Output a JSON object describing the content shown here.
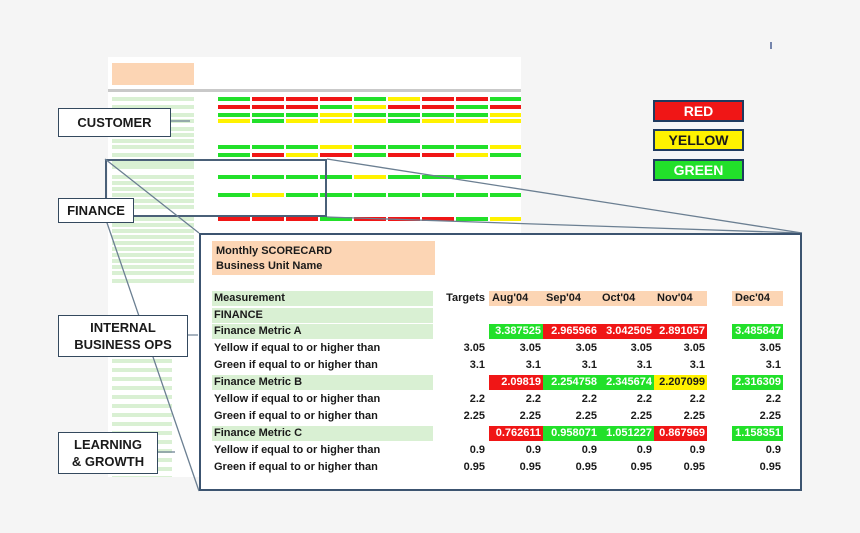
{
  "legend": {
    "items": [
      {
        "label": "RED",
        "color": "#f01616"
      },
      {
        "label": "YELLOW",
        "color": "#fff200"
      },
      {
        "label": "GREEN",
        "color": "#22e02a"
      }
    ]
  },
  "callouts": {
    "customer": "CUSTOMER",
    "finance": "FINANCE",
    "internal": "INTERNAL\nBUSINESS OPS",
    "learning": "LEARNING\n& GROWTH"
  },
  "scorecard": {
    "title": "Monthly SCORECARD",
    "subtitle": "Business Unit Name",
    "header": {
      "measurement": "Measurement",
      "targets": "Targets",
      "months": [
        "Aug'04",
        "Sep'04",
        "Oct'04",
        "Nov'04",
        "Dec'04"
      ]
    },
    "section": "FINANCE",
    "rows": [
      {
        "label": "Finance Metric A",
        "type": "metric",
        "target": "",
        "values": [
          "3.387525",
          "2.965966",
          "3.042505",
          "2.891057",
          "3.485847"
        ],
        "status": [
          "green",
          "red",
          "red",
          "red",
          "green"
        ]
      },
      {
        "label": "Yellow if equal to or higher than",
        "type": "plain",
        "target": "3.05",
        "values": [
          "3.05",
          "3.05",
          "3.05",
          "3.05",
          "3.05"
        ]
      },
      {
        "label": "Green if equal to or higher than",
        "type": "plain",
        "target": "3.1",
        "values": [
          "3.1",
          "3.1",
          "3.1",
          "3.1",
          "3.1"
        ]
      },
      {
        "label": "Finance Metric B",
        "type": "metric",
        "target": "",
        "values": [
          "2.09819",
          "2.254758",
          "2.345674",
          "2.207099",
          "2.316309"
        ],
        "status": [
          "red",
          "green",
          "green",
          "yellow",
          "green"
        ]
      },
      {
        "label": "Yellow if equal to or higher than",
        "type": "plain",
        "target": "2.2",
        "values": [
          "2.2",
          "2.2",
          "2.2",
          "2.2",
          "2.2"
        ]
      },
      {
        "label": "Green if equal to or higher than",
        "type": "plain",
        "target": "2.25",
        "values": [
          "2.25",
          "2.25",
          "2.25",
          "2.25",
          "2.25"
        ]
      },
      {
        "label": "Finance Metric C",
        "type": "metric",
        "target": "",
        "values": [
          "0.762611",
          "0.958071",
          "1.051227",
          "0.867969",
          "1.158351"
        ],
        "status": [
          "red",
          "green",
          "green",
          "red",
          "green"
        ]
      },
      {
        "label": "Yellow if equal to or higher than",
        "type": "plain",
        "target": "0.9",
        "values": [
          "0.9",
          "0.9",
          "0.9",
          "0.9",
          "0.9"
        ]
      },
      {
        "label": "Green if equal to or higher than",
        "type": "plain",
        "target": "0.95",
        "values": [
          "0.95",
          "0.95",
          "0.95",
          "0.95",
          "0.95"
        ]
      }
    ]
  }
}
